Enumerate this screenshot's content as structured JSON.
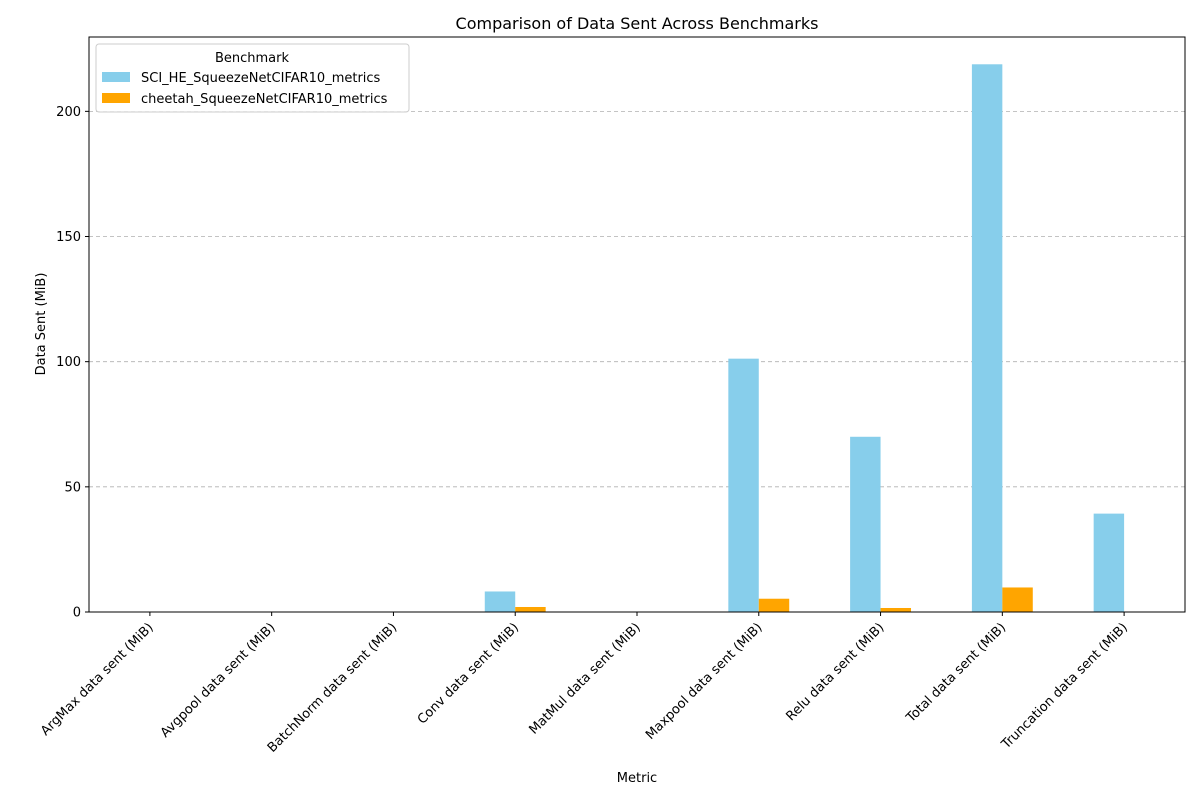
{
  "chart_data": {
    "type": "bar",
    "title": "Comparison of Data Sent Across Benchmarks",
    "xlabel": "Metric",
    "ylabel": "Data Sent (MiB)",
    "categories": [
      "ArgMax data sent (MiB)",
      "Avgpool data sent (MiB)",
      "BatchNorm data sent (MiB)",
      "Conv data sent (MiB)",
      "MatMul data sent (MiB)",
      "Maxpool data sent (MiB)",
      "Relu data sent (MiB)",
      "Total data sent (MiB)",
      "Truncation data sent (MiB)"
    ],
    "series": [
      {
        "name": "SCI_HE_SqueezeNetCIFAR10_metrics",
        "color": "#87ceeb",
        "values": [
          0,
          0,
          0,
          8.2,
          0,
          101.2,
          70.0,
          218.8,
          39.3
        ]
      },
      {
        "name": "cheetah_SqueezeNetCIFAR10_metrics",
        "color": "#ffa500",
        "values": [
          0,
          0,
          0,
          2.0,
          0,
          5.3,
          1.6,
          9.8,
          0
        ]
      }
    ],
    "ylim": [
      0,
      229.7
    ],
    "yticks": [
      0,
      50,
      100,
      150,
      200
    ],
    "grid": "y-dashed",
    "legend": {
      "title": "Benchmark",
      "placement": "top-left"
    }
  }
}
